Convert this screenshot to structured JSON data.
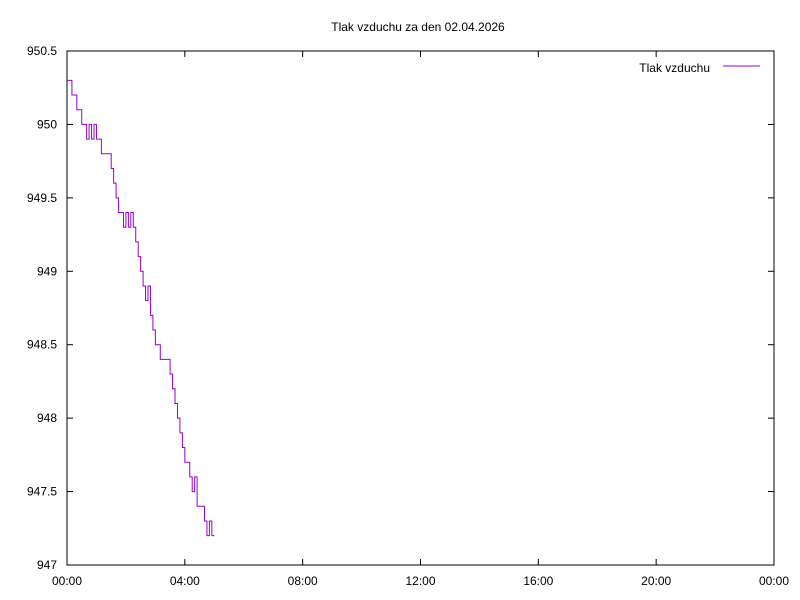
{
  "chart_data": {
    "type": "line",
    "title": "Tlak vzduchu za den 02.04.2026",
    "xlabel": "",
    "ylabel": "",
    "ylim": [
      947,
      950.5
    ],
    "xlim_hours": [
      0,
      24
    ],
    "yticks": [
      "947",
      "947.5",
      "948",
      "948.5",
      "949",
      "949.5",
      "950",
      "950.5"
    ],
    "xticks": [
      "00:00",
      "04:00",
      "08:00",
      "12:00",
      "16:00",
      "20:00",
      "00:00"
    ],
    "legend_position": "top-right",
    "grid": false,
    "line_style": "steps",
    "series": [
      {
        "name": "Tlak vzduchu",
        "color": "#9400d3",
        "x": [
          "00:00",
          "00:10",
          "00:20",
          "00:30",
          "00:40",
          "00:45",
          "00:50",
          "00:55",
          "01:00",
          "01:05",
          "01:10",
          "01:20",
          "01:30",
          "01:35",
          "01:40",
          "01:45",
          "01:50",
          "01:55",
          "02:00",
          "02:05",
          "02:10",
          "02:15",
          "02:20",
          "02:25",
          "02:30",
          "02:35",
          "02:40",
          "02:45",
          "02:50",
          "02:55",
          "03:00",
          "03:05",
          "03:10",
          "03:15",
          "03:20",
          "03:30",
          "03:35",
          "03:40",
          "03:45",
          "03:50",
          "03:55",
          "04:00",
          "04:05",
          "04:10",
          "04:15",
          "04:20",
          "04:25",
          "04:30",
          "04:35",
          "04:40",
          "04:45",
          "04:50",
          "04:55",
          "05:00"
        ],
        "values": [
          950.3,
          950.2,
          950.1,
          950.0,
          949.9,
          950.0,
          949.9,
          950.0,
          949.9,
          949.9,
          949.8,
          949.8,
          949.7,
          949.6,
          949.5,
          949.4,
          949.4,
          949.3,
          949.4,
          949.3,
          949.4,
          949.3,
          949.2,
          949.1,
          949.0,
          948.9,
          948.8,
          948.9,
          948.7,
          948.6,
          948.5,
          948.5,
          948.4,
          948.4,
          948.4,
          948.3,
          948.2,
          948.1,
          948.0,
          947.9,
          947.8,
          947.7,
          947.7,
          947.6,
          947.5,
          947.6,
          947.4,
          947.4,
          947.4,
          947.3,
          947.2,
          947.3,
          947.2,
          947.2
        ]
      }
    ]
  }
}
